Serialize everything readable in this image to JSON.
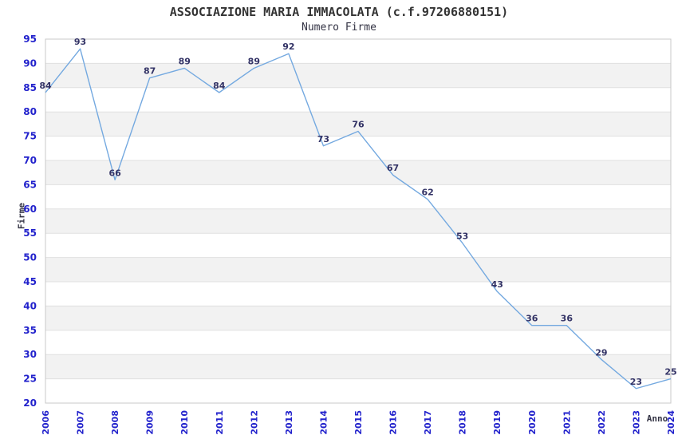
{
  "title": "ASSOCIAZIONE MARIA IMMACOLATA (c.f.97206880151)",
  "subtitle": "Numero Firme",
  "chart_data": {
    "type": "line",
    "x": [
      "2006",
      "2007",
      "2008",
      "2009",
      "2010",
      "2011",
      "2012",
      "2013",
      "2014",
      "2015",
      "2016",
      "2017",
      "2018",
      "2019",
      "2020",
      "2021",
      "2022",
      "2023",
      "2024"
    ],
    "series": [
      {
        "name": "Numero Firme",
        "values": [
          84,
          93,
          66,
          87,
          89,
          84,
          89,
          92,
          73,
          76,
          67,
          62,
          53,
          43,
          36,
          36,
          29,
          23,
          25
        ]
      }
    ],
    "xlabel": "Anno",
    "ylabel": "Firme",
    "ylim": [
      20,
      95
    ],
    "ytick_step": 5,
    "grid": "horizontal-alternating-bands",
    "legend_position": "none",
    "data_labels": true,
    "markers": "none"
  },
  "colors": {
    "line": "#74A9E0",
    "tick_label": "#2222CC",
    "data_label": "#333366",
    "band_fill": "#F2F2F2",
    "band_alt_fill": "#FFFFFF",
    "grid_line": "#E0E0E0",
    "plot_border": "#C8C8C8",
    "title": "#333333",
    "subtitle": "#333344",
    "axis_title": "#333344",
    "background": "#FFFFFF"
  }
}
